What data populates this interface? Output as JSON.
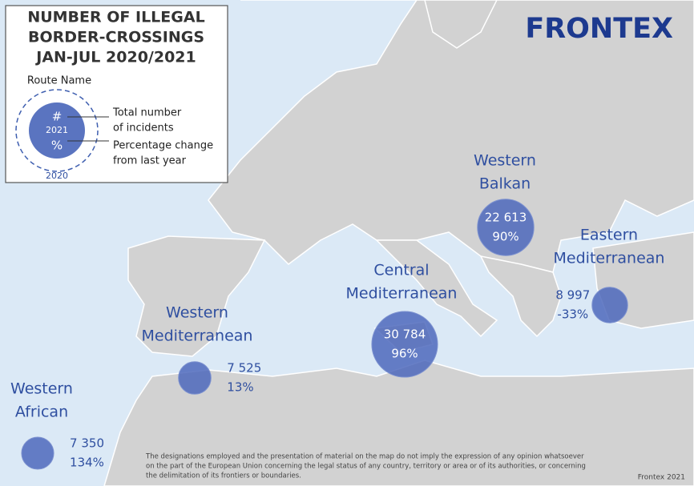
{
  "legend": {
    "title_lines": [
      "NUMBER OF ILLEGAL",
      "BORDER-CROSSINGS",
      "JAN-JUL 2020/2021"
    ],
    "route_name": "Route Name",
    "count_symbol": "#",
    "year_current": "2021",
    "change_symbol": "%",
    "year_previous": "2020",
    "count_note_lines": [
      "Total number",
      "of incidents"
    ],
    "change_note_lines": [
      "Percentage change",
      "from last year"
    ]
  },
  "logo": "FRONTEX",
  "routes": [
    {
      "name_lines": [
        "Western",
        "Balkan"
      ],
      "value": 22613,
      "value_label": "22 613",
      "change_label": "90%"
    },
    {
      "name_lines": [
        "Eastern",
        "Mediterranean"
      ],
      "value": 8997,
      "value_label": "8 997",
      "change_label": "-33%"
    },
    {
      "name_lines": [
        "Central",
        "Mediterranean"
      ],
      "value": 30784,
      "value_label": "30 784",
      "change_label": "96%"
    },
    {
      "name_lines": [
        "Western",
        "Mediterranean"
      ],
      "value": 7525,
      "value_label": "7 525",
      "change_label": "13%"
    },
    {
      "name_lines": [
        "Western",
        "African"
      ],
      "value": 7350,
      "value_label": "7 350",
      "change_label": "134%"
    }
  ],
  "disclaimer_lines": [
    "The designations employed and the presentation of material on the map do not imply the expression of any opinion whatsoever",
    "on the part of the European Union concerning the legal status of any country, territory or area or of its authorities, or concerning",
    "the delimitation of its frontiers or boundaries."
  ],
  "credit": "Frontex 2021"
}
